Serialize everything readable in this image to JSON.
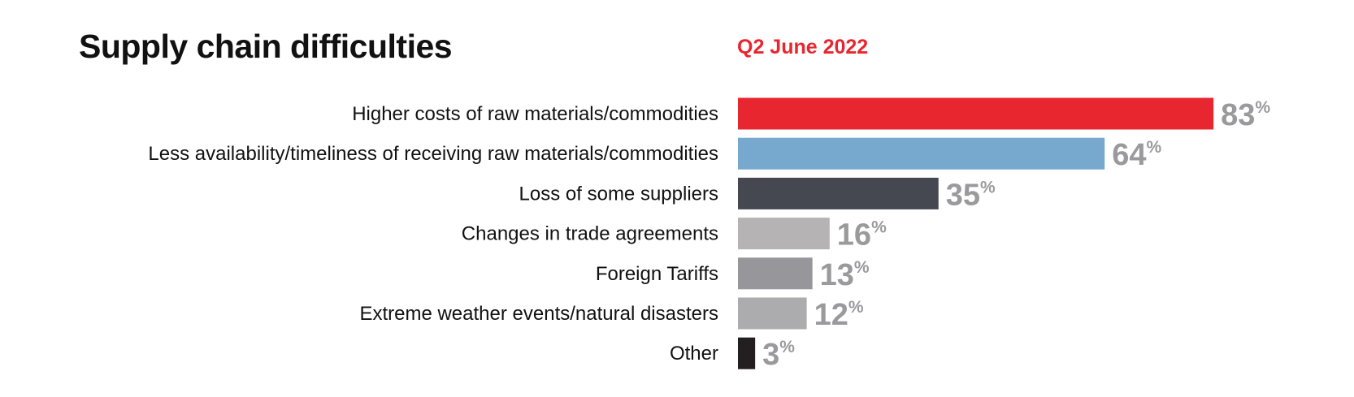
{
  "chart_data": {
    "type": "bar",
    "orientation": "horizontal",
    "title": "Supply chain difficulties",
    "subtitle": "Q2 June 2022",
    "subtitle_color": "#e8262f",
    "categories": [
      "Higher costs of raw materials/commodities",
      "Less availability/timeliness of receiving raw materials/commodities",
      "Loss of some suppliers",
      "Changes in trade agreements",
      "Foreign Tariffs",
      "Extreme weather events/natural disasters",
      "Other"
    ],
    "values": [
      83,
      64,
      35,
      16,
      13,
      12,
      3
    ],
    "value_suffix": "%",
    "bar_colors": [
      "#e8262f",
      "#77a8cd",
      "#454851",
      "#b5b3b3",
      "#97979b",
      "#acabad",
      "#231f20"
    ],
    "value_label_color": "#9a9a9c",
    "xlim": [
      0,
      100
    ],
    "grid": false,
    "legend": "none"
  }
}
